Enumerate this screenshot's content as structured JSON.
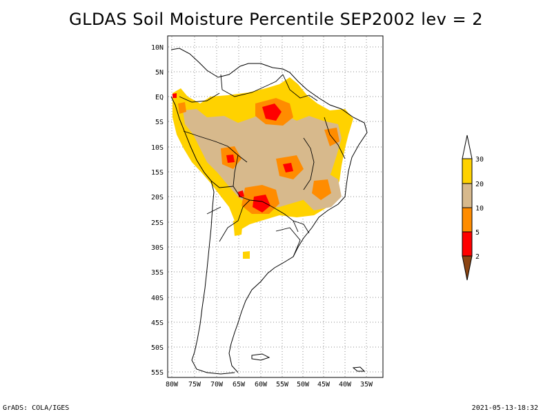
{
  "title": "GLDAS Soil Moisture Percentile SEP2002 lev = 2",
  "footer": {
    "left": "GrADS: COLA/IGES",
    "right": "2021-05-13-18:32"
  },
  "map": {
    "lat_labels": [
      "10N",
      "5N",
      "EQ",
      "5S",
      "10S",
      "15S",
      "20S",
      "25S",
      "30S",
      "35S",
      "40S",
      "45S",
      "50S",
      "55S"
    ],
    "lon_labels": [
      "80W",
      "75W",
      "70W",
      "65W",
      "60W",
      "55W",
      "50W",
      "45W",
      "40W",
      "35W"
    ],
    "lat_range": [
      -56,
      12
    ],
    "lon_range": [
      -81,
      -32
    ],
    "grid": "dotted"
  },
  "legend": {
    "labels": [
      "30",
      "20",
      "10",
      "5",
      "2"
    ],
    "colors": {
      "above30": "#ffffff",
      "c20_30": "#ffd200",
      "c10_20": "#d7b98c",
      "c5_10": "#ff8c00",
      "c2_5": "#ff0000",
      "below2": "#8b4513"
    }
  }
}
